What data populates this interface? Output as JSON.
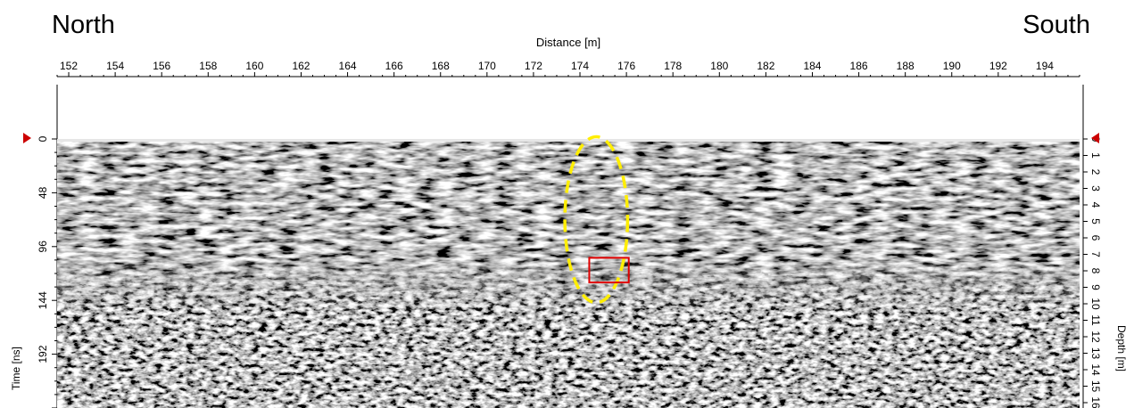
{
  "header": {
    "left_direction": "North",
    "right_direction": "South"
  },
  "chart_data": {
    "type": "heatmap",
    "description_shown": "GPR radargram",
    "xlabel": "Distance [m]",
    "x_ticks": [
      "152",
      "154",
      "156",
      "158",
      "160",
      "162",
      "164",
      "166",
      "168",
      "170",
      "172",
      "174",
      "176",
      "178",
      "180",
      "182",
      "184",
      "186",
      "188",
      "190",
      "192",
      "194"
    ],
    "xlim": [
      151.5,
      195.5
    ],
    "ylabel_left": "Time [ns]",
    "y_ticks_left": [
      "0",
      "48",
      "96",
      "144",
      "192"
    ],
    "ylim_time_ns": [
      0,
      240
    ],
    "ylabel_right": "Depth [m]",
    "y_ticks_right": [
      "0",
      "1",
      "2",
      "3",
      "4",
      "5",
      "6",
      "7",
      "8",
      "9",
      "10",
      "11",
      "12",
      "13",
      "14",
      "15",
      "16"
    ],
    "annotations": [
      {
        "type": "dashed-ellipse",
        "color": "#ffee00",
        "center_distance_m": 174.7,
        "center_time_ns": 72,
        "width_m": 2.7,
        "height_ns": 148
      },
      {
        "type": "rectangle",
        "color": "#e00000",
        "distance_m": [
          174.4,
          176.1
        ],
        "time_ns": [
          106,
          128
        ]
      }
    ],
    "markers": [
      {
        "type": "triangle",
        "color": "#d00000",
        "side": "left",
        "time_ns": 0
      },
      {
        "type": "triangle",
        "color": "#d00000",
        "side": "right",
        "time_ns": 0
      }
    ],
    "colormap": "grayscale"
  }
}
